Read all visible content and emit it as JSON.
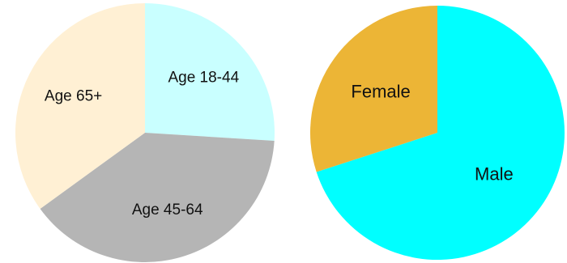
{
  "chart_data": [
    {
      "type": "pie",
      "title": "",
      "start": "top",
      "direction": "clockwise",
      "slices": [
        {
          "label": "Age 18-44",
          "value": 26,
          "color": "#c9ffff"
        },
        {
          "label": "Age 45-64",
          "value": 39,
          "color": "#b5b5b5"
        },
        {
          "label": "Age 65+",
          "value": 35,
          "color": "#fff0d4"
        }
      ]
    },
    {
      "type": "pie",
      "title": "",
      "start": "top",
      "direction": "clockwise",
      "slices": [
        {
          "label": "Male",
          "value": 70,
          "color": "#00ffff"
        },
        {
          "label": "Female",
          "value": 30,
          "color": "#ecb536"
        }
      ]
    }
  ]
}
